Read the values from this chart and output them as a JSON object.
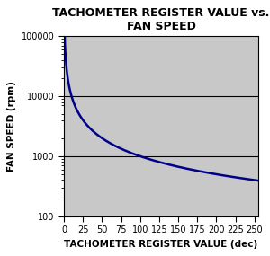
{
  "title": "TACHOMETER REGISTER VALUE vs.\nFAN SPEED",
  "xlabel": "TACHOMETER REGISTER VALUE (dec)",
  "ylabel": "FAN SPEED (rpm)",
  "xlim": [
    0,
    255
  ],
  "ylim": [
    100,
    200000
  ],
  "ylim_display": [
    100,
    100000
  ],
  "xticks": [
    0,
    25,
    50,
    75,
    100,
    125,
    150,
    175,
    200,
    225,
    250
  ],
  "yticks": [
    100,
    1000,
    10000,
    100000
  ],
  "ytick_labels": [
    "100",
    "1000",
    "10000",
    "100000"
  ],
  "curve_color": "#00008B",
  "background_color": "#C8C8C8",
  "outer_background": "#FFFFFF",
  "line_width": 1.8,
  "title_fontsize": 9,
  "axis_label_fontsize": 7.5,
  "tick_fontsize": 7,
  "hlines": [
    1000,
    10000
  ],
  "hline_color": "#000000",
  "curve_constant": 100000.0,
  "x_start": 0.4,
  "x_end": 255
}
